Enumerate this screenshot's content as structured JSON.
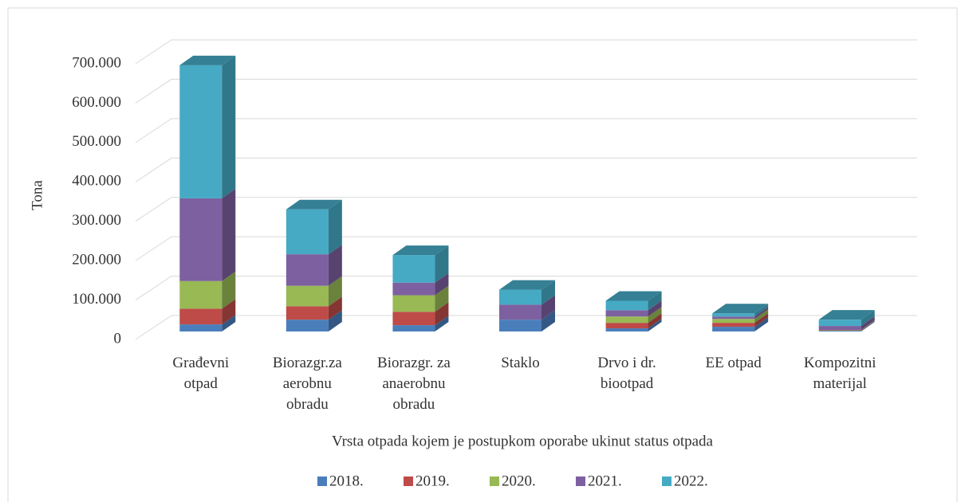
{
  "chart_data": {
    "type": "bar3d_stacked",
    "x_label": "Vrsta otpada kojem je postupkom oporabe ukinut status otpada",
    "y_label": "Tona",
    "categories": [
      "Građevni otpad",
      "Biorazgr.za aerobnu obradu",
      "Biorazgr. za anaerobnu obradu",
      "Staklo",
      "Drvo i dr. biootpad",
      "EE otpad",
      "Kompozitni materijal"
    ],
    "series": [
      {
        "name": "2018.",
        "color": "#4a7ebb",
        "values": [
          18000,
          30000,
          16000,
          30000,
          8000,
          12000,
          2000
        ]
      },
      {
        "name": "2019.",
        "color": "#be4b48",
        "values": [
          40000,
          34000,
          34000,
          0,
          14000,
          10000,
          1000
        ]
      },
      {
        "name": "2020.",
        "color": "#98b954",
        "values": [
          70000,
          52000,
          42000,
          0,
          16000,
          10000,
          1000
        ]
      },
      {
        "name": "2021.",
        "color": "#7d60a0",
        "values": [
          210000,
          80000,
          32000,
          38000,
          16000,
          6000,
          10000
        ]
      },
      {
        "name": "2022.",
        "color": "#46aac5",
        "values": [
          338000,
          114000,
          70000,
          38000,
          24000,
          8000,
          16000
        ]
      }
    ],
    "ylim": [
      0,
      700000
    ],
    "yticks": [
      0,
      {
        "value": 100000,
        "label": "100.000"
      },
      {
        "value": 200000,
        "label": "200.000"
      },
      {
        "value": 300000,
        "label": "300.000"
      },
      {
        "value": 400000,
        "label": "400.000"
      },
      {
        "value": 500000,
        "label": "500.000"
      },
      {
        "value": 600000,
        "label": "600.000"
      },
      {
        "value": 700000,
        "label": "700.000"
      }
    ],
    "grid": true,
    "legend": "bottom"
  }
}
